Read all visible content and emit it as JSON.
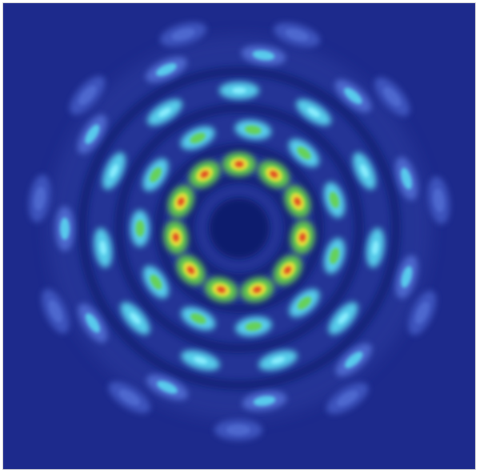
{
  "image": {
    "kind": "intensity-map",
    "symmetry": "11-fold",
    "rings": [
      {
        "name": "inner",
        "lobes": 11
      },
      {
        "name": "second",
        "lobes": 11
      },
      {
        "name": "third",
        "lobes": 11
      },
      {
        "name": "fourth",
        "lobes": 11
      },
      {
        "name": "outer",
        "lobes": 11
      }
    ],
    "colors": {
      "background": "#1d2a8c",
      "dark_gap": "#0f1a6e",
      "low": "#4f6ad0",
      "mid": "#5ad6f0",
      "high": "#67d24a",
      "peak": "#f0e03a",
      "max": "#e23a1e"
    }
  }
}
